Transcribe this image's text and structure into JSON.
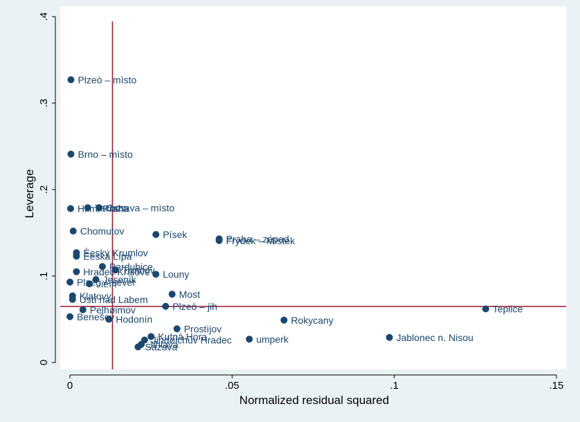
{
  "chart_data": {
    "type": "scatter",
    "title": "",
    "xlabel": "Normalized residual squared",
    "ylabel": "Leverage",
    "xlim": [
      -0.003,
      0.153
    ],
    "ylim": [
      -0.008,
      0.412
    ],
    "x_ticks": [
      0,
      0.05,
      0.1,
      0.15
    ],
    "x_tick_labels": [
      "0",
      ".05",
      ".1",
      ".15"
    ],
    "y_ticks": [
      0,
      0.1,
      0.2,
      0.3,
      0.4
    ],
    "y_tick_labels": [
      "0",
      ".1",
      ".2",
      ".3",
      ".4"
    ],
    "grid": false,
    "reference_lines": {
      "x": 0.0131,
      "y": 0.0648,
      "color": "#a0142a"
    },
    "colors": {
      "background": "#eaf2f3",
      "plot_background": "#ffffff",
      "marker": "#1a476f",
      "reference_line": "#a0142a"
    },
    "points": [
      {
        "x": 0.0003,
        "y": 0.327,
        "label": "Plzeò – mìsto"
      },
      {
        "x": 0.0003,
        "y": 0.241,
        "label": "Brno – mìsto"
      },
      {
        "x": 0.0002,
        "y": 0.178,
        "label": "Hl.m. Praha"
      },
      {
        "x": 0.0055,
        "y": 0.179,
        "label": "Tachov"
      },
      {
        "x": 0.009,
        "y": 0.179,
        "label": "Ostrava – mìsto"
      },
      {
        "x": 0.001,
        "y": 0.152,
        "label": "Chomutov"
      },
      {
        "x": 0.0265,
        "y": 0.148,
        "label": "Písek"
      },
      {
        "x": 0.046,
        "y": 0.143,
        "label": "Praha – západ"
      },
      {
        "x": 0.046,
        "y": 0.141,
        "label": "Frýdek – Místek"
      },
      {
        "x": 0.002,
        "y": 0.127,
        "label": "Èeský Krumlov"
      },
      {
        "x": 0.002,
        "y": 0.123,
        "label": "Èeská Lípa"
      },
      {
        "x": 0.01,
        "y": 0.111,
        "label": "Pardubice"
      },
      {
        "x": 0.002,
        "y": 0.105,
        "label": "Hradec Králové"
      },
      {
        "x": 0.014,
        "y": 0.107,
        "label": "Trutnov"
      },
      {
        "x": 0.0265,
        "y": 0.102,
        "label": "Louny"
      },
      {
        "x": 0.0,
        "y": 0.093,
        "label": "Plzeò – sever"
      },
      {
        "x": 0.008,
        "y": 0.096,
        "label": "Jeseník"
      },
      {
        "x": 0.006,
        "y": 0.091,
        "label": "Jièín"
      },
      {
        "x": 0.0315,
        "y": 0.079,
        "label": "Most"
      },
      {
        "x": 0.0008,
        "y": 0.077,
        "label": "Klatovy"
      },
      {
        "x": 0.0008,
        "y": 0.073,
        "label": "Ústí nad Labem"
      },
      {
        "x": 0.0295,
        "y": 0.065,
        "label": "Plzeò – jih"
      },
      {
        "x": 0.004,
        "y": 0.061,
        "label": "Pelhøimov"
      },
      {
        "x": 0.0,
        "y": 0.053,
        "label": "Benešov"
      },
      {
        "x": 0.012,
        "y": 0.05,
        "label": "Hodonín"
      },
      {
        "x": 0.1282,
        "y": 0.062,
        "label": "Teplice"
      },
      {
        "x": 0.066,
        "y": 0.049,
        "label": "Rokycany"
      },
      {
        "x": 0.033,
        "y": 0.039,
        "label": "Prostìjov"
      },
      {
        "x": 0.0553,
        "y": 0.027,
        "label": "umperk"
      },
      {
        "x": 0.0985,
        "y": 0.029,
        "label": "Jablonec n. Nisou"
      },
      {
        "x": 0.025,
        "y": 0.03,
        "label": "Kutná Hora"
      },
      {
        "x": 0.023,
        "y": 0.026,
        "label": "Jindøichùv Hradec"
      },
      {
        "x": 0.022,
        "y": 0.021,
        "label": "Jihlava"
      },
      {
        "x": 0.021,
        "y": 0.018,
        "label": "Sázava"
      }
    ]
  }
}
